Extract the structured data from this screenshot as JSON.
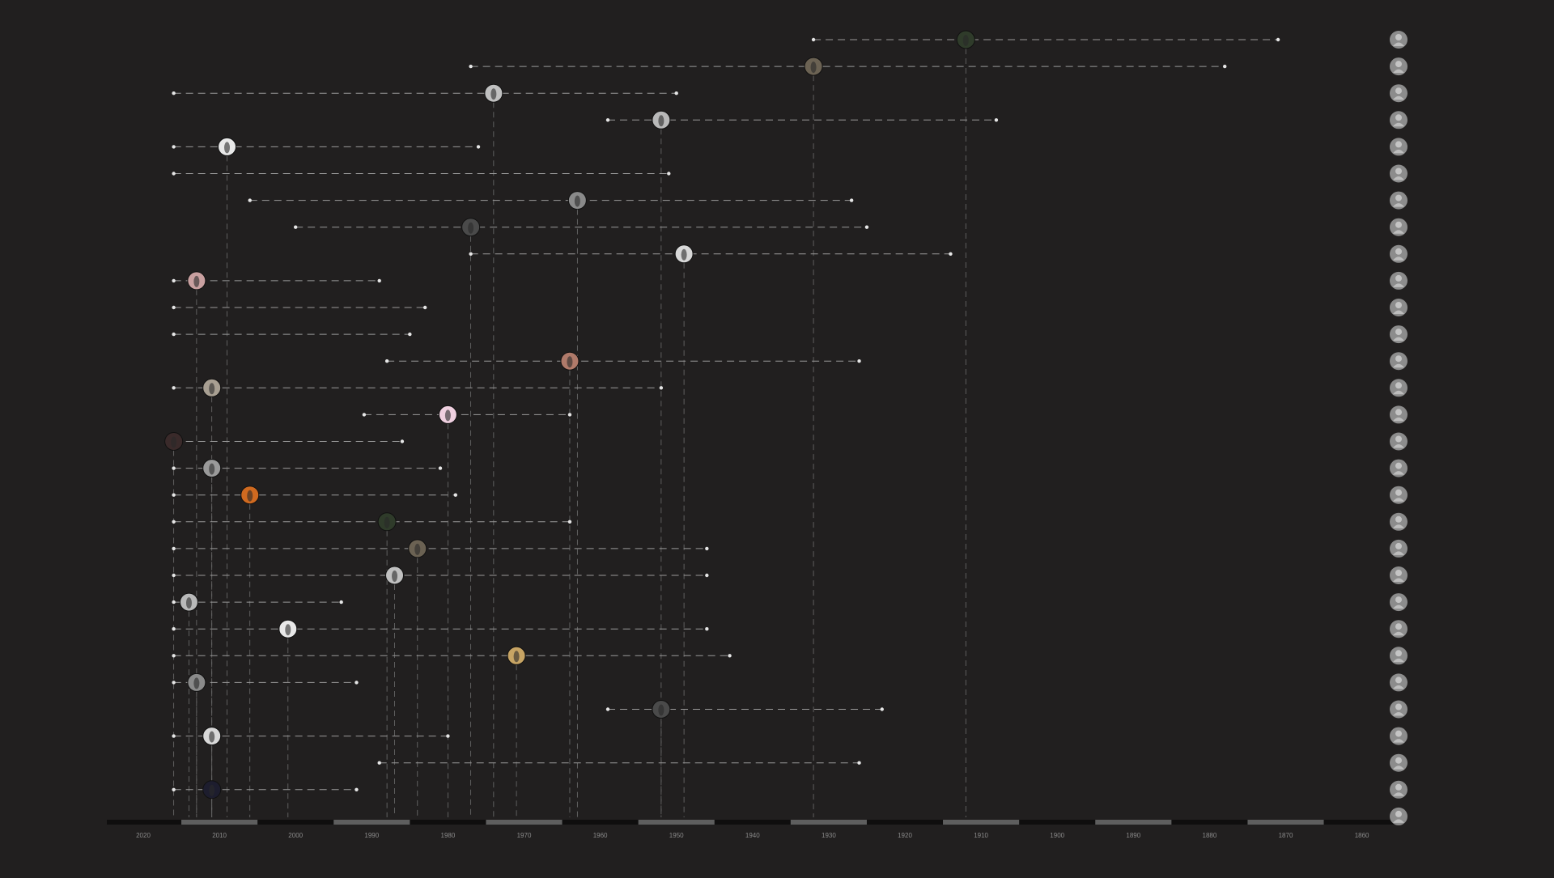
{
  "chart_data": {
    "type": "timeline",
    "x_axis": {
      "reversed": true,
      "range": [
        2020,
        1860
      ],
      "tick_labels": [
        "2020",
        "2010",
        "2000",
        "1990",
        "1980",
        "1970",
        "1960",
        "1950",
        "1940",
        "1930",
        "1920",
        "1910",
        "1900",
        "1890",
        "1880",
        "1870",
        "1860"
      ]
    },
    "grid": false,
    "legend": "none",
    "row_icon_names": [
      "portrait-avatar-icon",
      "portrait-avatar-icon",
      "portrait-avatar-icon",
      "portrait-avatar-icon",
      "portrait-avatar-icon",
      "portrait-avatar-icon",
      "portrait-avatar-icon",
      "portrait-avatar-icon",
      "portrait-avatar-icon",
      "portrait-avatar-icon",
      "portrait-avatar-icon",
      "portrait-avatar-icon",
      "portrait-avatar-icon",
      "portrait-avatar-icon",
      "portrait-avatar-icon",
      "portrait-avatar-icon",
      "portrait-avatar-icon",
      "portrait-avatar-icon",
      "portrait-avatar-icon",
      "portrait-avatar-icon",
      "portrait-avatar-icon",
      "portrait-avatar-icon",
      "portrait-avatar-icon",
      "portrait-avatar-icon",
      "portrait-avatar-icon",
      "portrait-avatar-icon",
      "portrait-avatar-icon",
      "portrait-avatar-icon",
      "portrait-avatar-icon",
      "portrait-avatar-icon"
    ],
    "rows": [
      {
        "start": 1871,
        "end": 1932,
        "marker": 1912
      },
      {
        "start": 1878,
        "end": 1977,
        "marker": 1932
      },
      {
        "start": 1950,
        "end": 2016,
        "marker": 1974
      },
      {
        "start": 1908,
        "end": 1959,
        "marker": 1952
      },
      {
        "start": 1976,
        "end": 2016,
        "marker": 2009
      },
      {
        "start": 1951,
        "end": 2016,
        "marker": null
      },
      {
        "start": 1927,
        "end": 2006,
        "marker": 1963
      },
      {
        "start": 1925,
        "end": 2000,
        "marker": 1977
      },
      {
        "start": 1914,
        "end": 1977,
        "marker": 1949
      },
      {
        "start": 1989,
        "end": 2016,
        "marker": 2013
      },
      {
        "start": 1983,
        "end": 2016,
        "marker": null
      },
      {
        "start": 1985,
        "end": 2016,
        "marker": null
      },
      {
        "start": 1926,
        "end": 1988,
        "marker": 1964
      },
      {
        "start": 1952,
        "end": 2016,
        "marker": 2011
      },
      {
        "start": 1964,
        "end": 1991,
        "marker": 1980
      },
      {
        "start": 1986,
        "end": 2016,
        "marker": 2016
      },
      {
        "start": 1981,
        "end": 2016,
        "marker": 2011
      },
      {
        "start": 1979,
        "end": 2016,
        "marker": 2006
      },
      {
        "start": 1964,
        "end": 2016,
        "marker": 1988
      },
      {
        "start": 1946,
        "end": 2016,
        "marker": 1984
      },
      {
        "start": 1946,
        "end": 2016,
        "marker": 1987
      },
      {
        "start": 1994,
        "end": 2016,
        "marker": 2014
      },
      {
        "start": 1946,
        "end": 2016,
        "marker": 2001
      },
      {
        "start": 1943,
        "end": 2016,
        "marker": 1971
      },
      {
        "start": 1992,
        "end": 2016,
        "marker": 2013
      },
      {
        "start": 1923,
        "end": 1959,
        "marker": 1952
      },
      {
        "start": 1980,
        "end": 2016,
        "marker": 2011
      },
      {
        "start": 1926,
        "end": 1989,
        "marker": null
      },
      {
        "start": 1992,
        "end": 2016,
        "marker": 2011
      },
      {
        "start": null,
        "end": null,
        "marker": null
      }
    ]
  },
  "colors": {
    "background": "#211f1f",
    "dash": "#9a9a9a",
    "endpoint": "#e6e6e6",
    "axis_track": "#0f0e0e",
    "axis_band": "#5e5e5e",
    "tick_label": "#8a8a8a",
    "marker_palette": [
      "#2f3b2a",
      "#6b6253",
      "#c0c0c0",
      "#b9b9b9",
      "#e8e8e8",
      "#c7a464",
      "#8a8a8a",
      "#4a4a4a",
      "#d8d8d8",
      "#c9a0a0",
      "#1d1d2e",
      "#7a2b2b",
      "#b07a6a",
      "#a89f92",
      "#f0d0e0",
      "#3a2a2a",
      "#9a9a9a",
      "#d06a20"
    ]
  }
}
